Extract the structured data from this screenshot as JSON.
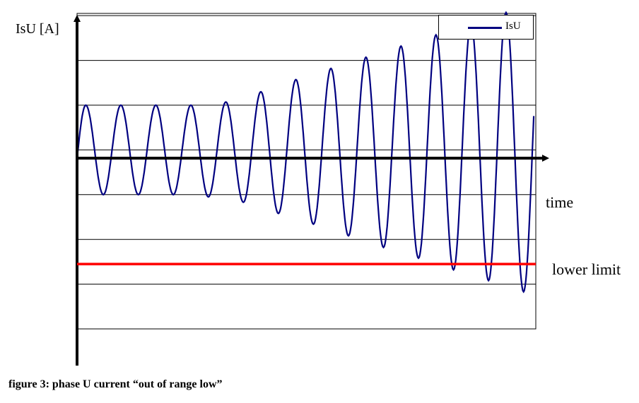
{
  "chart_data": {
    "type": "line",
    "ylabel": "IsU [A]",
    "xlabel": "time",
    "caption": "figure 3: phase U current “out of range low”",
    "legend": {
      "position": "top-right",
      "entries": [
        "IsU"
      ]
    },
    "grid": true,
    "ylim": [
      -3.8,
      3.25
    ],
    "xlim": [
      0,
      13.1
    ],
    "gridlines_y": [
      -3.8,
      -2.8,
      -1.8,
      -0.8,
      0.2,
      1.2,
      2.2,
      3.2
    ],
    "lower_limit": {
      "label": "lower limit",
      "value": -2.35,
      "color": "#ff0000"
    },
    "series": [
      {
        "name": "IsU",
        "color": "#000080",
        "peaks": [
          {
            "x": 0.25,
            "y": 1.2
          },
          {
            "x": 0.75,
            "y": -0.8
          },
          {
            "x": 1.25,
            "y": 1.2
          },
          {
            "x": 1.75,
            "y": -0.8
          },
          {
            "x": 2.25,
            "y": 1.2
          },
          {
            "x": 2.75,
            "y": -0.8
          },
          {
            "x": 3.25,
            "y": 1.2
          },
          {
            "x": 3.75,
            "y": -0.85
          },
          {
            "x": 4.25,
            "y": 1.27
          },
          {
            "x": 4.75,
            "y": -0.97
          },
          {
            "x": 5.25,
            "y": 1.5
          },
          {
            "x": 5.75,
            "y": -1.22
          },
          {
            "x": 6.25,
            "y": 1.77
          },
          {
            "x": 6.75,
            "y": -1.46
          },
          {
            "x": 7.25,
            "y": 2.02
          },
          {
            "x": 7.75,
            "y": -1.72
          },
          {
            "x": 8.25,
            "y": 2.27
          },
          {
            "x": 8.75,
            "y": -1.98
          },
          {
            "x": 9.25,
            "y": 2.52
          },
          {
            "x": 9.75,
            "y": -2.22
          },
          {
            "x": 10.25,
            "y": 2.77
          },
          {
            "x": 10.75,
            "y": -2.48
          },
          {
            "x": 11.25,
            "y": 3.02
          },
          {
            "x": 11.75,
            "y": -2.72
          },
          {
            "x": 12.25,
            "y": 3.27
          },
          {
            "x": 12.75,
            "y": -2.97
          }
        ]
      }
    ]
  }
}
